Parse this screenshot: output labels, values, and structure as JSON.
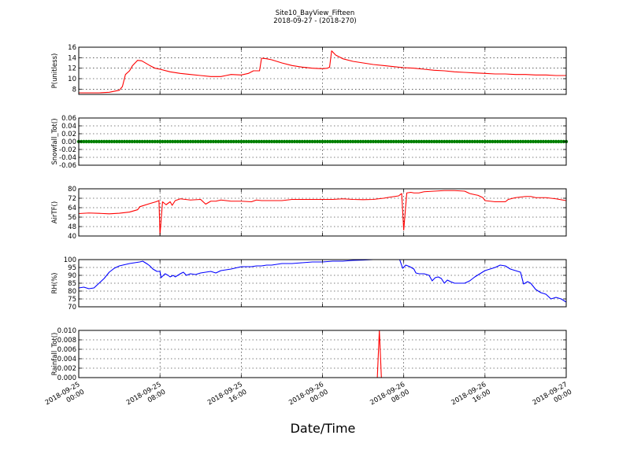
{
  "figure": {
    "title": "Site10_BayView_Fifteen",
    "subtitle": "2018-09-27 - (2018-270)",
    "xlabel": "Date/Time",
    "x_ticks": [
      {
        "at": 0,
        "lines": [
          "2018-09-25",
          "00:00"
        ]
      },
      {
        "at": 8,
        "lines": [
          "2018-09-25",
          "08:00"
        ]
      },
      {
        "at": 16,
        "lines": [
          "2018-09-25",
          "16:00"
        ]
      },
      {
        "at": 24,
        "lines": [
          "2018-09-26",
          "00:00"
        ]
      },
      {
        "at": 32,
        "lines": [
          "2018-09-26",
          "08:00"
        ]
      },
      {
        "at": 40,
        "lines": [
          "2018-09-26",
          "16:00"
        ]
      },
      {
        "at": 48,
        "lines": [
          "2018-09-27",
          "00:00"
        ]
      }
    ],
    "grid": true
  },
  "chart_data": [
    {
      "type": "line",
      "ylabel": "P(unitless)",
      "ylim": [
        7,
        16
      ],
      "yticks": [
        8,
        10,
        12,
        14,
        16
      ],
      "xlim": [
        "2018-09-25 00:00",
        "2018-09-27 00:00"
      ],
      "series": [
        {
          "color": "#ff0000",
          "points": [
            [
              0,
              7.3
            ],
            [
              1,
              7.3
            ],
            [
              2,
              7.3
            ],
            [
              3,
              7.4
            ],
            [
              4,
              7.8
            ],
            [
              4.3,
              8.5
            ],
            [
              4.6,
              10.8
            ],
            [
              5.0,
              11.5
            ],
            [
              5.3,
              12.5
            ],
            [
              5.8,
              13.5
            ],
            [
              6.2,
              13.4
            ],
            [
              7,
              12.5
            ],
            [
              7.5,
              12.0
            ],
            [
              8,
              11.8
            ],
            [
              9,
              11.3
            ],
            [
              10,
              11.0
            ],
            [
              11,
              10.8
            ],
            [
              12,
              10.6
            ],
            [
              13,
              10.4
            ],
            [
              14,
              10.4
            ],
            [
              14.5,
              10.6
            ],
            [
              15,
              10.8
            ],
            [
              16,
              10.7
            ],
            [
              16.7,
              11.0
            ],
            [
              17.2,
              11.5
            ],
            [
              17.8,
              11.5
            ],
            [
              18.0,
              13.9
            ],
            [
              18.5,
              13.8
            ],
            [
              19,
              13.6
            ],
            [
              20,
              13.0
            ],
            [
              21,
              12.5
            ],
            [
              22,
              12.2
            ],
            [
              23,
              12.0
            ],
            [
              24,
              11.9
            ],
            [
              24.5,
              12.0
            ],
            [
              24.7,
              12.2
            ],
            [
              24.9,
              15.3
            ],
            [
              25.3,
              14.5
            ],
            [
              26,
              13.8
            ],
            [
              27,
              13.3
            ],
            [
              28,
              13.0
            ],
            [
              29,
              12.7
            ],
            [
              30,
              12.5
            ],
            [
              31,
              12.3
            ],
            [
              32,
              12.1
            ],
            [
              33,
              12.0
            ],
            [
              34,
              11.8
            ],
            [
              35,
              11.6
            ],
            [
              36,
              11.5
            ],
            [
              37,
              11.3
            ],
            [
              38,
              11.2
            ],
            [
              39,
              11.1
            ],
            [
              40,
              11.0
            ],
            [
              41,
              10.9
            ],
            [
              42,
              10.9
            ],
            [
              43,
              10.8
            ],
            [
              44,
              10.8
            ],
            [
              45,
              10.7
            ],
            [
              46,
              10.7
            ],
            [
              47,
              10.6
            ],
            [
              48,
              10.6
            ]
          ]
        }
      ]
    },
    {
      "type": "scatter",
      "ylabel": "Snowfall_Tot()",
      "ylim": [
        -0.06,
        0.06
      ],
      "yticks": [
        -0.06,
        -0.04,
        -0.02,
        0.0,
        0.02,
        0.04,
        0.06
      ],
      "series": [
        {
          "color": "#007f00",
          "constant_value": 0.0,
          "x_range": [
            0,
            48
          ],
          "n_points": 193
        }
      ]
    },
    {
      "type": "line",
      "ylabel": "AirTF()",
      "ylim": [
        40,
        80
      ],
      "yticks": [
        40,
        48,
        56,
        64,
        72,
        80
      ],
      "series": [
        {
          "color": "#ff0000",
          "points": [
            [
              0,
              59
            ],
            [
              1,
              59.5
            ],
            [
              2,
              59.2
            ],
            [
              3,
              58.8
            ],
            [
              4,
              59.3
            ],
            [
              5,
              60.3
            ],
            [
              5.8,
              62.3
            ],
            [
              6.0,
              64.8
            ],
            [
              7,
              67.5
            ],
            [
              7.6,
              69
            ],
            [
              7.9,
              70
            ],
            [
              8.0,
              41
            ],
            [
              8.25,
              69
            ],
            [
              8.6,
              66.5
            ],
            [
              9.0,
              69
            ],
            [
              9.2,
              66
            ],
            [
              9.5,
              70
            ],
            [
              10,
              71.5
            ],
            [
              11,
              70.5
            ],
            [
              12,
              71
            ],
            [
              12.5,
              67
            ],
            [
              13,
              69.5
            ],
            [
              13.5,
              69.5
            ],
            [
              14,
              70.5
            ],
            [
              15,
              69.5
            ],
            [
              16,
              69.5
            ],
            [
              17,
              69
            ],
            [
              17.5,
              70.5
            ],
            [
              18,
              70
            ],
            [
              19,
              70
            ],
            [
              20,
              70
            ],
            [
              21,
              71
            ],
            [
              22,
              71
            ],
            [
              23,
              71
            ],
            [
              24,
              71
            ],
            [
              25,
              71
            ],
            [
              26,
              71.5
            ],
            [
              27,
              71
            ],
            [
              28,
              70.8
            ],
            [
              29,
              71
            ],
            [
              30,
              72
            ],
            [
              30.7,
              73
            ],
            [
              31.5,
              74
            ],
            [
              31.8,
              76
            ],
            [
              32.0,
              45
            ],
            [
              32.3,
              76.5
            ],
            [
              32.7,
              77
            ],
            [
              33,
              76.5
            ],
            [
              33.5,
              76.5
            ],
            [
              34,
              77.5
            ],
            [
              35,
              78
            ],
            [
              36,
              78.5
            ],
            [
              37,
              78.5
            ],
            [
              38,
              78
            ],
            [
              38.5,
              76
            ],
            [
              39,
              75
            ],
            [
              39.3,
              74.5
            ],
            [
              39.8,
              72.5
            ],
            [
              40,
              70
            ],
            [
              41,
              69
            ],
            [
              42,
              69
            ],
            [
              42.3,
              71
            ],
            [
              43,
              72.5
            ],
            [
              44,
              73.5
            ],
            [
              44.5,
              73.5
            ],
            [
              45,
              72.5
            ],
            [
              46,
              72.5
            ],
            [
              47,
              71.5
            ],
            [
              48,
              70
            ]
          ]
        }
      ]
    },
    {
      "type": "line",
      "ylabel": "RH(%)",
      "ylim": [
        70,
        100
      ],
      "yticks": [
        70,
        75,
        80,
        85,
        90,
        95,
        100
      ],
      "series": [
        {
          "color": "#0000ff",
          "points": [
            [
              0,
              82
            ],
            [
              0.5,
              82.5
            ],
            [
              1,
              81.5
            ],
            [
              1.5,
              82
            ],
            [
              2,
              85
            ],
            [
              2.5,
              88
            ],
            [
              3,
              92
            ],
            [
              3.5,
              94.5
            ],
            [
              4,
              96
            ],
            [
              5,
              97.5
            ],
            [
              6,
              98.5
            ],
            [
              6.3,
              99
            ],
            [
              6.8,
              97
            ],
            [
              7,
              96
            ],
            [
              7.3,
              94
            ],
            [
              7.7,
              92.5
            ],
            [
              8,
              92.5
            ],
            [
              8.1,
              88.5
            ],
            [
              8.5,
              91
            ],
            [
              8.8,
              90
            ],
            [
              9,
              89
            ],
            [
              9.3,
              90
            ],
            [
              9.5,
              89
            ],
            [
              10,
              91
            ],
            [
              10.3,
              92
            ],
            [
              10.6,
              90
            ],
            [
              11,
              91
            ],
            [
              11.5,
              90.5
            ],
            [
              12,
              91.5
            ],
            [
              13,
              92.5
            ],
            [
              13.5,
              91.5
            ],
            [
              14,
              93
            ],
            [
              14.5,
              93.5
            ],
            [
              15,
              94
            ],
            [
              16,
              95.5
            ],
            [
              17,
              95.5
            ],
            [
              17.5,
              96
            ],
            [
              18,
              96
            ],
            [
              18.5,
              96.5
            ],
            [
              19,
              96.5
            ],
            [
              20,
              97.5
            ],
            [
              21,
              97.5
            ],
            [
              22,
              98
            ],
            [
              23,
              98.5
            ],
            [
              24,
              98.5
            ],
            [
              25,
              99
            ],
            [
              26,
              99
            ],
            [
              27,
              99.5
            ],
            [
              28,
              99.7
            ],
            [
              29,
              100
            ],
            [
              30,
              100
            ],
            [
              31,
              100
            ],
            [
              31.6,
              100
            ],
            [
              31.9,
              94.5
            ],
            [
              32.2,
              96.5
            ],
            [
              32.6,
              95.5
            ],
            [
              33,
              94
            ],
            [
              33.2,
              91.5
            ],
            [
              33.5,
              91
            ],
            [
              34,
              91
            ],
            [
              34.5,
              90
            ],
            [
              34.8,
              86.5
            ],
            [
              35.1,
              88.5
            ],
            [
              35.4,
              89
            ],
            [
              35.7,
              88
            ],
            [
              36,
              85
            ],
            [
              36.3,
              87
            ],
            [
              36.6,
              86
            ],
            [
              37,
              85
            ],
            [
              37.5,
              85
            ],
            [
              38,
              85
            ],
            [
              38.5,
              86.5
            ],
            [
              39,
              89
            ],
            [
              39.5,
              91
            ],
            [
              40,
              93
            ],
            [
              40.5,
              94
            ],
            [
              41,
              95
            ],
            [
              41.5,
              96.5
            ],
            [
              42,
              96
            ],
            [
              42.5,
              94
            ],
            [
              43,
              93
            ],
            [
              43.5,
              92
            ],
            [
              43.8,
              84.5
            ],
            [
              44.2,
              86
            ],
            [
              44.5,
              85
            ],
            [
              45,
              81
            ],
            [
              45.5,
              79
            ],
            [
              46,
              78
            ],
            [
              46.5,
              75
            ],
            [
              47,
              76
            ],
            [
              47.5,
              75
            ],
            [
              48,
              73
            ]
          ]
        }
      ]
    },
    {
      "type": "line",
      "ylabel": "Rainfall_Tot()",
      "ylim": [
        0,
        0.01
      ],
      "yticks": [
        0.0,
        0.002,
        0.004,
        0.006,
        0.008,
        0.01
      ],
      "series": [
        {
          "color": "#ff0000",
          "points": [
            [
              0,
              0
            ],
            [
              29.4,
              0
            ],
            [
              29.6,
              0.01
            ],
            [
              29.8,
              0
            ],
            [
              48,
              0
            ]
          ]
        }
      ]
    }
  ]
}
